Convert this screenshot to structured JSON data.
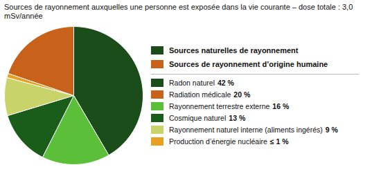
{
  "chart_data": {
    "type": "pie",
    "title": "Sources de rayonnement auxquelles une personne est exposée dans la vie courante – dose totale : 3,0 mSv/année",
    "categories": [
      "Radon naturel",
      "Rayonnement terrestre externe",
      "Cosmique naturel",
      "Rayonnement naturel interne (aliments ingérés)",
      "Production d’énergie nucléaire",
      "Radiation médicale"
    ],
    "values": [
      42,
      16,
      13,
      9,
      1,
      20
    ],
    "value_labels": [
      "42 %",
      "16 %",
      "13 %",
      "9 %",
      "≤ 1 %",
      "20 %"
    ],
    "colors": [
      "#1b4d1b",
      "#5cbf3a",
      "#1a5c1a",
      "#c8d46a",
      "#e8a020",
      "#c8621a"
    ],
    "groups": [
      {
        "name": "Sources naturelles de rayonnement",
        "color": "#1b4d1b"
      },
      {
        "name": "Sources de rayonnement d’origine humaine",
        "color": "#c8621a"
      }
    ],
    "legend": "right"
  }
}
